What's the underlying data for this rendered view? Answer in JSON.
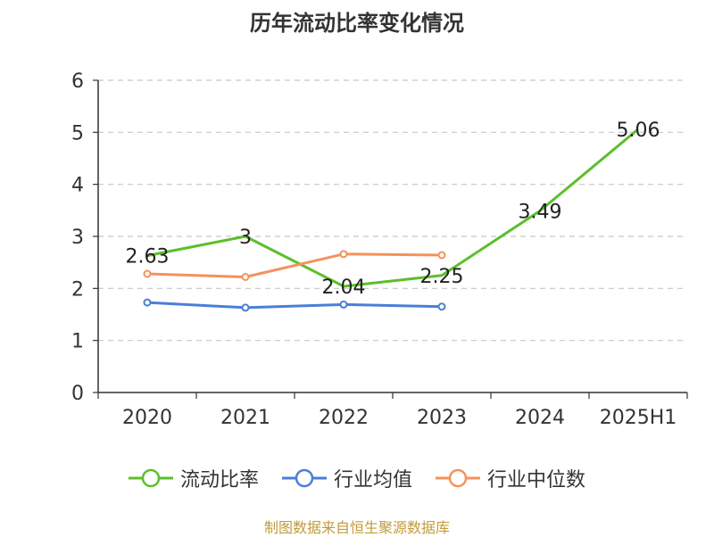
{
  "chart_data": {
    "type": "line",
    "title": "历年流动比率变化情况",
    "categories": [
      "2020",
      "2021",
      "2022",
      "2023",
      "2024",
      "2025H1"
    ],
    "ylim": [
      0,
      6
    ],
    "yticks": [
      0,
      1,
      2,
      3,
      4,
      5,
      6
    ],
    "grid": true,
    "legend_position": "bottom",
    "series": [
      {
        "name": "流动比率",
        "color": "#5cbf2a",
        "values": [
          2.63,
          3,
          2.04,
          2.25,
          3.49,
          5.06
        ],
        "labels": [
          "2.63",
          "3",
          "2.04",
          "2.25",
          "3.49",
          "5.06"
        ],
        "show_labels": true,
        "markers": false
      },
      {
        "name": "行业均值",
        "color": "#4a7fd6",
        "values": [
          1.73,
          1.63,
          1.69,
          1.65,
          null,
          null
        ],
        "labels": [],
        "show_labels": false,
        "markers": true
      },
      {
        "name": "行业中位数",
        "color": "#f4925b",
        "values": [
          2.28,
          2.22,
          2.66,
          2.64,
          null,
          null
        ],
        "labels": [],
        "show_labels": false,
        "markers": true
      }
    ]
  },
  "source_note": "制图数据来自恒生聚源数据库"
}
